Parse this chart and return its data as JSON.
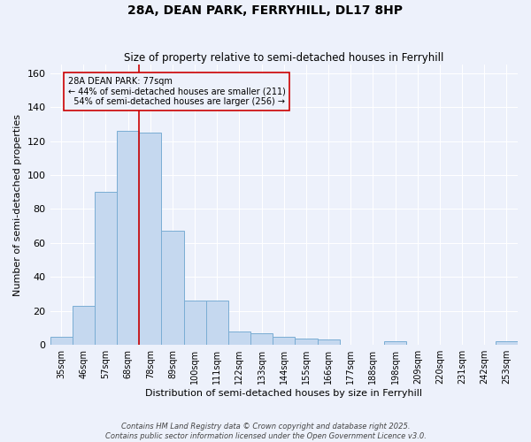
{
  "title": "28A, DEAN PARK, FERRYHILL, DL17 8HP",
  "subtitle": "Size of property relative to semi-detached houses in Ferryhill",
  "xlabel": "Distribution of semi-detached houses by size in Ferryhill",
  "ylabel": "Number of semi-detached properties",
  "categories": [
    "35sqm",
    "46sqm",
    "57sqm",
    "68sqm",
    "78sqm",
    "89sqm",
    "100sqm",
    "111sqm",
    "122sqm",
    "133sqm",
    "144sqm",
    "155sqm",
    "166sqm",
    "177sqm",
    "188sqm",
    "198sqm",
    "209sqm",
    "220sqm",
    "231sqm",
    "242sqm",
    "253sqm"
  ],
  "values": [
    5,
    23,
    90,
    126,
    125,
    67,
    26,
    26,
    8,
    7,
    5,
    4,
    3,
    0,
    0,
    2,
    0,
    0,
    0,
    0,
    2
  ],
  "bar_color": "#c5d8ef",
  "bar_edge_color": "#7aadd4",
  "property_label": "28A DEAN PARK: 77sqm",
  "pct_smaller": 44,
  "n_smaller": 211,
  "pct_larger": 54,
  "n_larger": 256,
  "vline_color": "#cc0000",
  "vline_x": 3.5,
  "annotation_box_color": "#cc0000",
  "ylim": [
    0,
    165
  ],
  "yticks": [
    0,
    20,
    40,
    60,
    80,
    100,
    120,
    140,
    160
  ],
  "footer_line1": "Contains HM Land Registry data © Crown copyright and database right 2025.",
  "footer_line2": "Contains public sector information licensed under the Open Government Licence v3.0.",
  "background_color": "#edf1fb",
  "grid_color": "#ffffff",
  "title_fontsize": 10,
  "subtitle_fontsize": 8.5,
  "ylabel_fontsize": 8,
  "xlabel_fontsize": 8,
  "tick_fontsize": 7,
  "annotation_fontsize": 7,
  "footer_fontsize": 6
}
